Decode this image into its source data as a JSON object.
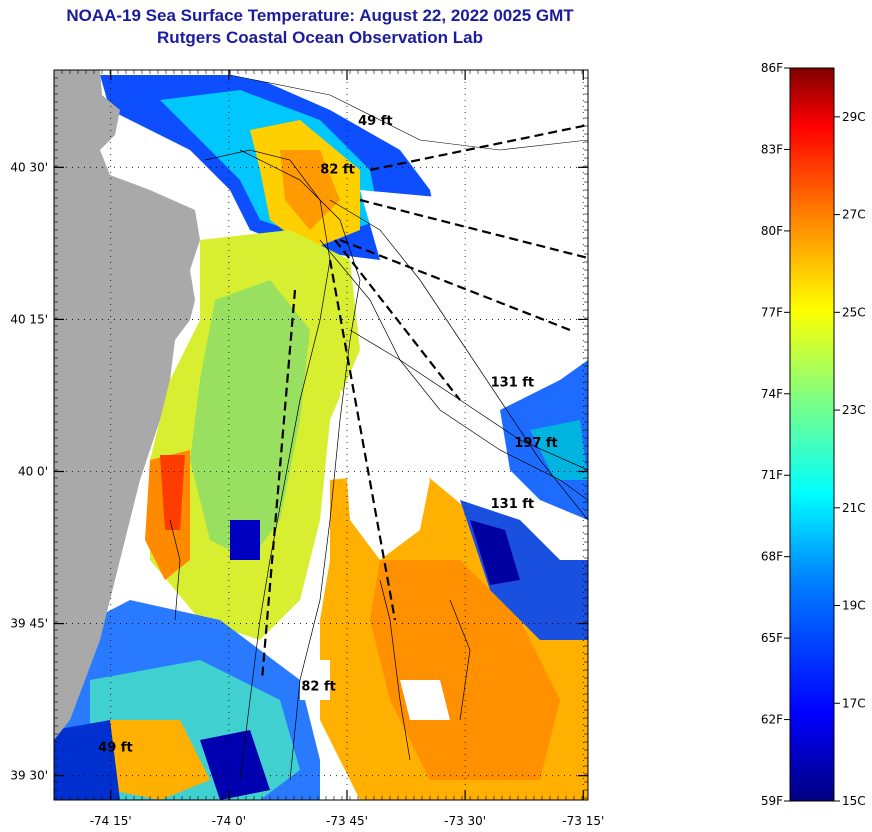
{
  "title": {
    "line1": "NOAA-19 Sea Surface Temperature:  August 22, 2022 0025 GMT",
    "line2": "Rutgers Coastal Ocean Observation Lab"
  },
  "map": {
    "lat_ticks": [
      {
        "label": "40 30'",
        "lat": 40.5
      },
      {
        "label": "40 15'",
        "lat": 40.25
      },
      {
        "label": "40 0'",
        "lat": 40.0
      },
      {
        "label": "39 45'",
        "lat": 39.75
      },
      {
        "label": "39 30'",
        "lat": 39.5
      }
    ],
    "lon_ticks": [
      {
        "label": "-74 15'",
        "lon": -74.25
      },
      {
        "label": "-74 0'",
        "lon": -74.0
      },
      {
        "label": "-73 45'",
        "lon": -73.75
      },
      {
        "label": "-73 30'",
        "lon": -73.5
      },
      {
        "label": "-73 15'",
        "lon": -73.25
      }
    ],
    "lon_range": [
      -74.37,
      -73.24
    ],
    "lat_range": [
      39.46,
      40.66
    ],
    "land_color": "#a9a9a9",
    "ocean_nodata_color": "#ffffff",
    "depth_labels": [
      {
        "text": "49 ft",
        "lon": -73.69,
        "lat": 40.57
      },
      {
        "text": "82 ft",
        "lon": -73.77,
        "lat": 40.49
      },
      {
        "text": "131 ft",
        "lon": -73.4,
        "lat": 40.14
      },
      {
        "text": "197 ft",
        "lon": -73.35,
        "lat": 40.04
      },
      {
        "text": "131 ft",
        "lon": -73.4,
        "lat": 39.94
      },
      {
        "text": "82 ft",
        "lon": -73.81,
        "lat": 39.64
      },
      {
        "text": "49 ft",
        "lon": -74.24,
        "lat": 39.54
      }
    ]
  },
  "colorbar": {
    "fahrenheit": [
      "86F",
      "83F",
      "80F",
      "77F",
      "74F",
      "71F",
      "68F",
      "65F",
      "62F",
      "59F"
    ],
    "celsius": [
      "29C",
      "27C",
      "25C",
      "23C",
      "21C",
      "19C",
      "17C",
      "15C"
    ],
    "colors": [
      "#800000",
      "#ff0000",
      "#ff8000",
      "#ffff00",
      "#80ff80",
      "#00ffff",
      "#0080ff",
      "#0000ff",
      "#000080"
    ]
  }
}
